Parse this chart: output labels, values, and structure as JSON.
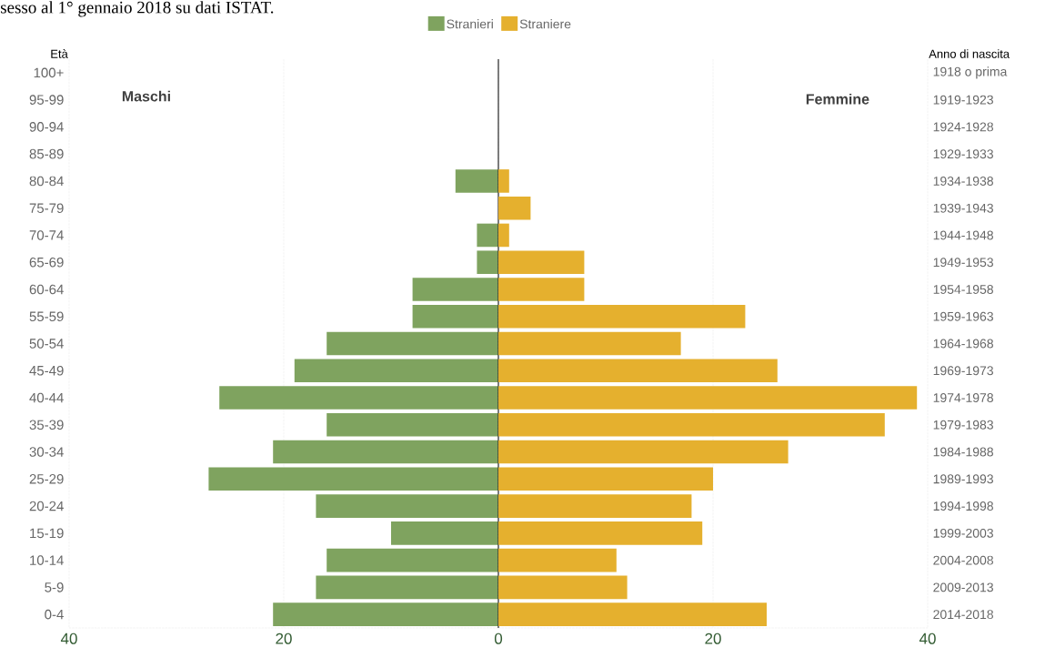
{
  "chart_data": [
    {
      "type": "bar",
      "orientation": "horizontal",
      "title": "sesso al 1° gennaio 2018 su dati ISTAT.",
      "ylabel": "Età",
      "categories": [
        "100+",
        "95-99",
        "90-94",
        "85-89",
        "80-84",
        "75-79",
        "70-74",
        "65-69",
        "60-64",
        "55-59",
        "50-54",
        "45-49",
        "40-44",
        "35-39",
        "30-34",
        "25-29",
        "20-24",
        "15-19",
        "10-14",
        "5-9",
        "0-4"
      ],
      "series": [
        {
          "name": "Stranieri",
          "color": "#7fa35f",
          "values": [
            0,
            0,
            0,
            0,
            4,
            0,
            2,
            2,
            8,
            8,
            16,
            19,
            26,
            16,
            21,
            27,
            17,
            10,
            16,
            17,
            21
          ]
        }
      ],
      "xlim": [
        40,
        0
      ],
      "xticks": [
        40,
        20,
        {
          "value": 0,
          "label": null
        }
      ],
      "grid": "x",
      "legend": "top right",
      "ref_lines": [
        {
          "axis": "x",
          "value": 0,
          "color": "#222222"
        }
      ],
      "annotations": [
        "Maschi"
      ]
    },
    {
      "type": "bar",
      "orientation": "horizontal",
      "y2label": "Anno di nascita",
      "categories": [
        "1918 o prima",
        "1919-1923",
        "1924-1928",
        "1929-1933",
        "1934-1938",
        "1939-1943",
        "1944-1948",
        "1949-1953",
        "1954-1958",
        "1959-1963",
        "1964-1968",
        "1969-1973",
        "1974-1978",
        "1979-1983",
        "1984-1988",
        "1989-1993",
        "1994-1998",
        "1999-2003",
        "2004-2008",
        "2009-2013",
        "2014-2018"
      ],
      "series": [
        {
          "name": "Straniere",
          "color": "#e5b02e",
          "values": [
            0,
            0,
            0,
            0,
            1,
            3,
            1,
            8,
            8,
            23,
            17,
            26,
            39,
            36,
            27,
            20,
            18,
            19,
            11,
            12,
            25
          ]
        }
      ],
      "xlim": [
        0,
        40
      ],
      "xticks": [
        0,
        20,
        40
      ],
      "grid": "x",
      "legend": "top left",
      "annotations": [
        "Femmine"
      ]
    }
  ]
}
